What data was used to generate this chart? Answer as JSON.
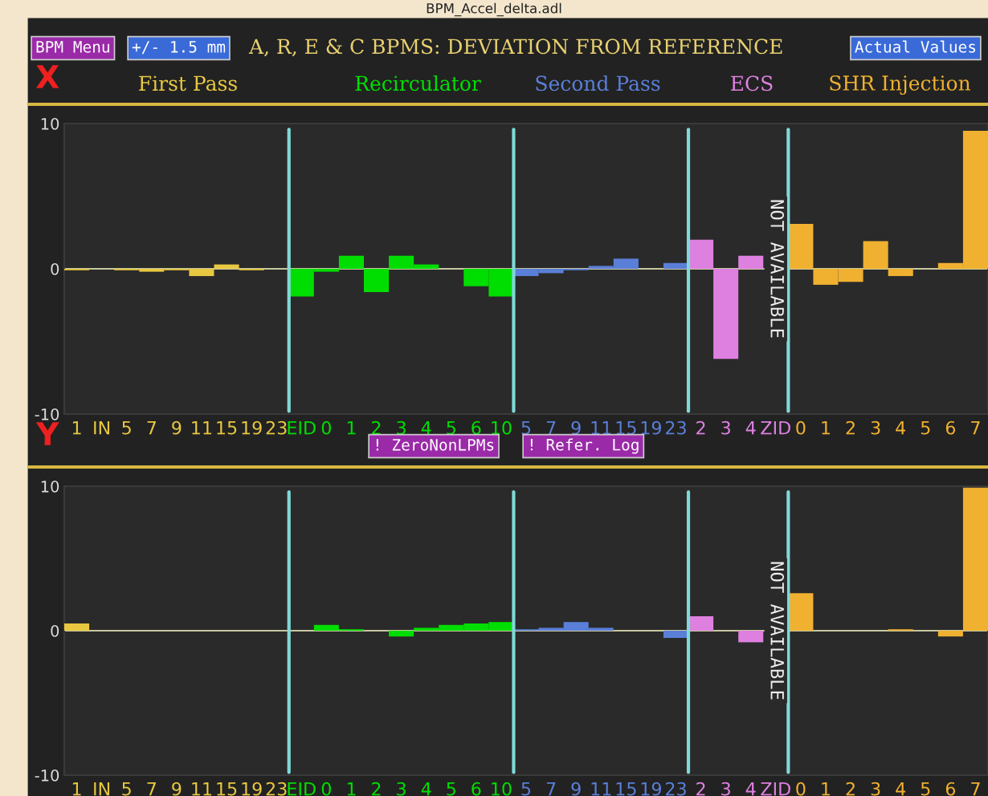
{
  "chart_data": [
    {
      "type": "bar",
      "title": "A, R, E & C BPMS: DEVIATION FROM REFERENCE",
      "ylabel": "X",
      "annotations": [
        "BPM_Accel_delta.adl",
        "BPM Menu",
        "+/- 1.5 mm",
        "Actual Values",
        {
          "text": "NOT AVAILABLE",
          "x": "ZID"
        }
      ],
      "categories": [
        "1",
        "IN",
        "5",
        "7",
        "9",
        "11",
        "15",
        "19",
        "23",
        "EID",
        "0",
        "1",
        "2",
        "3",
        "4",
        "5",
        "6",
        "10",
        "5",
        "7",
        "9",
        "11",
        "15",
        "19",
        "23",
        "2",
        "3",
        "4",
        "ZID",
        "0",
        "1",
        "2",
        "3",
        "4",
        "5",
        "6",
        "7"
      ],
      "series": [
        {
          "name": "First Pass",
          "color": "#e8c840",
          "values": [
            -0.1,
            null,
            -0.1,
            -0.2,
            -0.1,
            -0.5,
            0.3,
            -0.1,
            0,
            null,
            null,
            null,
            null,
            null,
            null,
            null,
            null,
            null,
            null,
            null,
            null,
            null,
            null,
            null,
            null,
            null,
            null,
            null,
            null,
            null,
            null,
            null,
            null,
            null,
            null,
            null,
            null
          ]
        },
        {
          "name": "Recirculator",
          "color": "#00dd00",
          "values": [
            null,
            null,
            null,
            null,
            null,
            null,
            null,
            null,
            null,
            -1.9,
            -0.2,
            0.9,
            -1.6,
            0.9,
            0.3,
            0,
            -1.2,
            -1.9,
            null,
            null,
            null,
            null,
            null,
            null,
            null,
            null,
            null,
            null,
            null,
            null,
            null,
            null,
            null,
            null,
            null,
            null,
            null
          ]
        },
        {
          "name": "Second Pass",
          "color": "#5a7fd8",
          "values": [
            null,
            null,
            null,
            null,
            null,
            null,
            null,
            null,
            null,
            null,
            null,
            null,
            null,
            null,
            null,
            null,
            null,
            null,
            -0.5,
            -0.3,
            -0.1,
            0.2,
            0.7,
            0,
            0.4,
            null,
            null,
            null,
            null,
            null,
            null,
            null,
            null,
            null,
            null,
            null,
            null
          ]
        },
        {
          "name": "ECS",
          "color": "#dd80e0",
          "values": [
            null,
            null,
            null,
            null,
            null,
            null,
            null,
            null,
            null,
            null,
            null,
            null,
            null,
            null,
            null,
            null,
            null,
            null,
            null,
            null,
            null,
            null,
            null,
            null,
            null,
            2.0,
            -6.2,
            0.9,
            null,
            null,
            null,
            null,
            null,
            null,
            null,
            null,
            null
          ]
        },
        {
          "name": "SHR Injection",
          "color": "#f0b030",
          "values": [
            null,
            null,
            null,
            null,
            null,
            null,
            null,
            null,
            null,
            null,
            null,
            null,
            null,
            null,
            null,
            null,
            null,
            null,
            null,
            null,
            null,
            null,
            null,
            null,
            null,
            null,
            null,
            null,
            null,
            3.1,
            -1.1,
            -0.9,
            1.9,
            -0.5,
            null,
            0.4,
            9.5
          ]
        }
      ],
      "ylim": [
        -10,
        10
      ],
      "yticks": [
        -10,
        0,
        10
      ],
      "ref_lines": [
        {
          "axis": "y",
          "value": 0,
          "color": "#c8c8a0"
        }
      ],
      "legend": "top",
      "grid": false
    },
    {
      "type": "bar",
      "ylabel": "Y",
      "annotations": [
        "! ZeroNonLPMs",
        "! Refer. Log",
        {
          "text": "NOT AVAILABLE",
          "x": "ZID"
        }
      ],
      "categories": [
        "1",
        "IN",
        "5",
        "7",
        "9",
        "11",
        "15",
        "19",
        "23",
        "EID",
        "0",
        "1",
        "2",
        "3",
        "4",
        "5",
        "6",
        "10",
        "5",
        "7",
        "9",
        "11",
        "15",
        "19",
        "23",
        "2",
        "3",
        "4",
        "ZID",
        "0",
        "1",
        "2",
        "3",
        "4",
        "5",
        "6",
        "7"
      ],
      "series": [
        {
          "color": "#e8c840",
          "values": [
            0.5,
            0,
            0,
            0,
            0,
            0,
            null,
            null,
            null,
            null,
            null,
            null,
            null,
            null,
            null,
            null,
            null,
            null,
            null,
            null,
            null,
            null,
            null,
            null,
            null,
            null,
            null,
            null,
            null,
            null,
            null,
            null,
            null,
            null,
            null,
            null,
            null
          ]
        },
        {
          "color": "#00dd00",
          "values": [
            null,
            null,
            null,
            null,
            null,
            null,
            null,
            null,
            null,
            0,
            0.4,
            0.1,
            0,
            -0.4,
            0.2,
            0.4,
            0.5,
            0.6,
            null,
            null,
            null,
            null,
            null,
            null,
            null,
            null,
            null,
            null,
            null,
            null,
            null,
            null,
            null,
            null,
            null,
            null,
            null
          ]
        },
        {
          "color": "#5a7fd8",
          "values": [
            null,
            null,
            null,
            null,
            null,
            null,
            null,
            null,
            null,
            null,
            null,
            null,
            null,
            null,
            null,
            null,
            null,
            null,
            0.1,
            0.2,
            0.6,
            0.2,
            0,
            0,
            -0.5,
            null,
            null,
            null,
            null,
            null,
            null,
            null,
            null,
            null,
            null,
            null,
            null
          ]
        },
        {
          "color": "#dd80e0",
          "values": [
            null,
            null,
            null,
            null,
            null,
            null,
            null,
            null,
            null,
            null,
            null,
            null,
            null,
            null,
            null,
            null,
            null,
            null,
            null,
            null,
            null,
            null,
            null,
            null,
            null,
            1.0,
            0,
            -0.8,
            null,
            null,
            null,
            null,
            null,
            null,
            null,
            null,
            null
          ]
        },
        {
          "color": "#f0b030",
          "values": [
            null,
            null,
            null,
            null,
            null,
            null,
            null,
            null,
            null,
            null,
            null,
            null,
            null,
            null,
            null,
            null,
            null,
            null,
            null,
            null,
            null,
            null,
            null,
            null,
            null,
            null,
            null,
            null,
            null,
            2.6,
            0,
            null,
            0,
            0.1,
            null,
            -0.4,
            9.9
          ]
        }
      ],
      "ylim": [
        -10,
        10
      ],
      "yticks": [
        -10,
        0,
        10
      ],
      "ref_lines": [
        {
          "axis": "y",
          "value": 0,
          "color": "#c8c8a0"
        }
      ],
      "grid": false
    }
  ]
}
